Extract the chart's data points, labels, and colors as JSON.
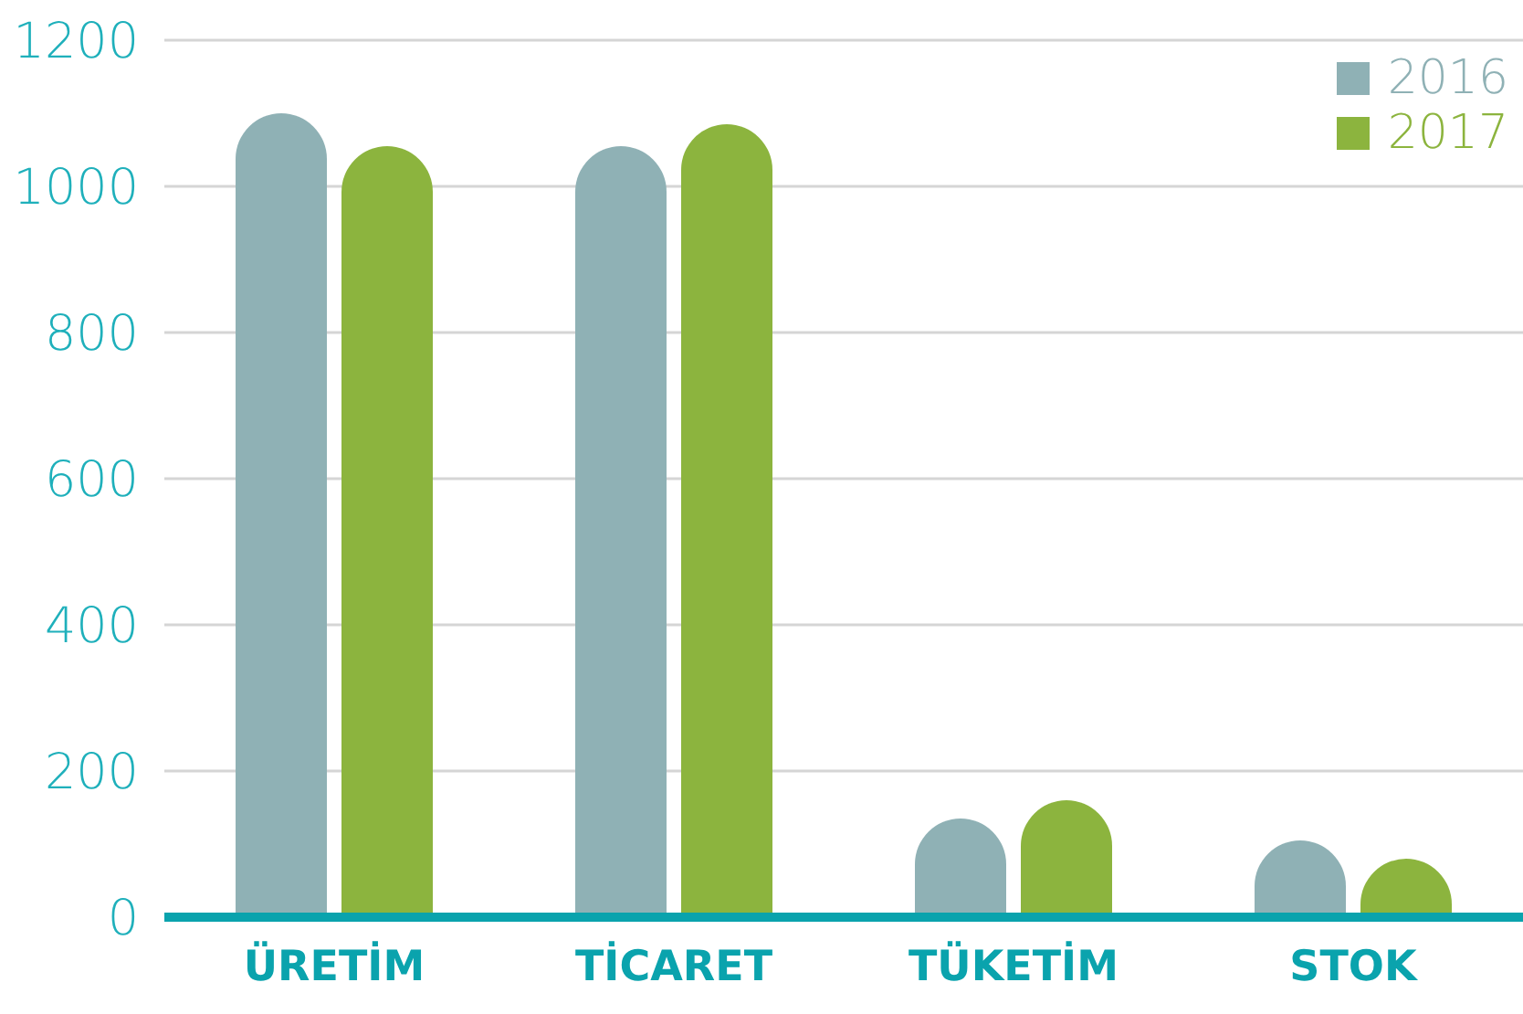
{
  "chart_data": {
    "type": "bar",
    "categories": [
      "ÜRETİM",
      "TİCARET",
      "TÜKETİM",
      "STOK"
    ],
    "series": [
      {
        "name": "2016",
        "color": "#8fb1b5",
        "values": [
          1100,
          1055,
          135,
          105
        ]
      },
      {
        "name": "2017",
        "color": "#8cb43e",
        "values": [
          1055,
          1085,
          160,
          80
        ]
      }
    ],
    "ylim": [
      0,
      1200
    ],
    "yticks": [
      0,
      200,
      400,
      600,
      800,
      1000,
      1200
    ],
    "grid": "y",
    "legend": "top right"
  }
}
